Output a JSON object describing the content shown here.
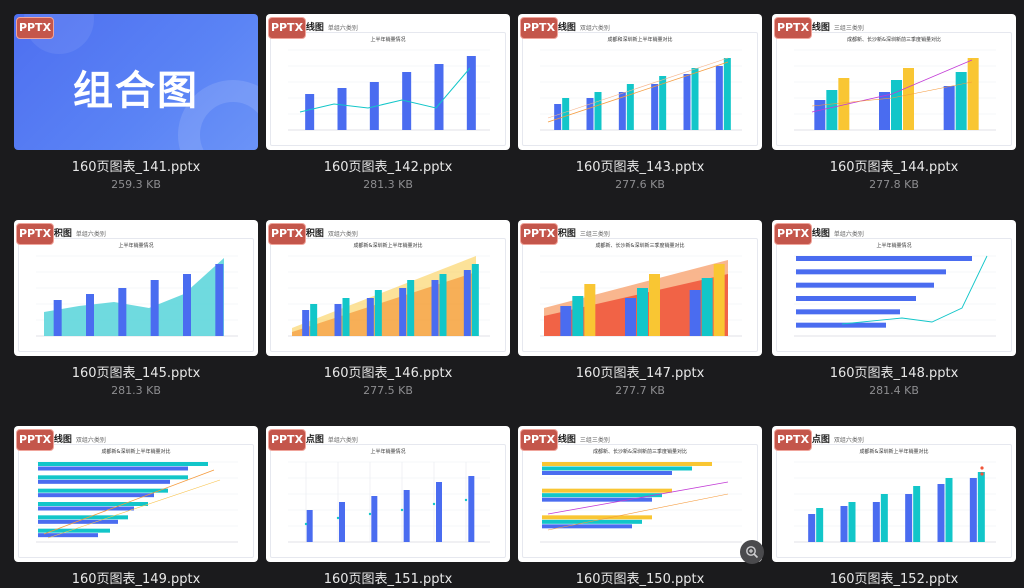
{
  "cards": [
    {
      "file": "160页图表_141.pptx",
      "size": "259.3 KB",
      "badge": "PPTX",
      "cover_title": "组合图"
    },
    {
      "file": "160页图表_142.pptx",
      "size": "281.3 KB",
      "badge": "PPTX",
      "head": "图&折线图",
      "sub": "单组六类别",
      "chart_title": "上半年销量情况"
    },
    {
      "file": "160页图表_143.pptx",
      "size": "277.6 KB",
      "badge": "PPTX",
      "head": "图&折线图",
      "sub": "双组六类别",
      "chart_title": "成都和深圳新上半年销量对比"
    },
    {
      "file": "160页图表_144.pptx",
      "size": "277.8 KB",
      "badge": "PPTX",
      "head": "图&折线图",
      "sub": "三组三类别",
      "chart_title": "成都新、长沙新&深圳新前三季度销量对比"
    },
    {
      "file": "160页图表_145.pptx",
      "size": "281.3 KB",
      "badge": "PPTX",
      "head": "图&面积图",
      "sub": "单组六类别",
      "chart_title": "上半年销量情况"
    },
    {
      "file": "160页图表_146.pptx",
      "size": "277.5 KB",
      "badge": "PPTX",
      "head": "图&面积图",
      "sub": "双组六类别",
      "chart_title": "成都新&深圳新上半年销量对比"
    },
    {
      "file": "160页图表_147.pptx",
      "size": "277.7 KB",
      "badge": "PPTX",
      "head": "图&面积图",
      "sub": "三组三类别",
      "chart_title": "成都新、长沙新&深圳新三季度销量对比"
    },
    {
      "file": "160页图表_148.pptx",
      "size": "281.4 KB",
      "badge": "PPTX",
      "head": "图&折线图",
      "sub": "单组六类别",
      "chart_title": "上半年销量情况"
    },
    {
      "file": "160页图表_149.pptx",
      "size": "",
      "badge": "PPTX",
      "head": "图&折线图",
      "sub": "双组六类别",
      "chart_title": "成都新&深圳新上半年销量对比"
    },
    {
      "file": "160页图表_151.pptx",
      "size": "",
      "badge": "PPTX",
      "head": "图&散点图",
      "sub": "单组六类别",
      "chart_title": "上半年销量情况"
    },
    {
      "file": "160页图表_150.pptx",
      "size": "",
      "badge": "PPTX",
      "head": "图&折线图",
      "sub": "三组三类别",
      "chart_title": "成都新、长沙新&深圳新前三季度销量对比"
    },
    {
      "file": "160页图表_152.pptx",
      "size": "",
      "badge": "PPTX",
      "head": "图&散点图",
      "sub": "双组六类别",
      "chart_title": "成都新&深圳新上半年销量对比"
    }
  ],
  "colors": {
    "blue": "#4a6cf0",
    "teal": "#12c6c9",
    "yellow": "#f9c633",
    "orange": "#f59a3b",
    "red": "#f0553a",
    "cover": "#5a83f5"
  },
  "icons": {
    "zoom": "zoom-icon"
  }
}
